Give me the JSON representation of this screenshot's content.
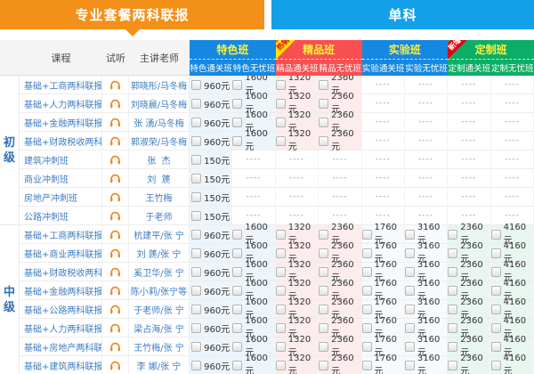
{
  "tabs": {
    "left": {
      "label": "专业套餐两科联报",
      "active": true
    },
    "right": {
      "label": "单科",
      "active": false
    }
  },
  "colors": {
    "tab_orange": "#f39019",
    "tab_blue": "#14a0e9",
    "link_blue": "#3e7cc0",
    "section_label_blue": "#2e6fb7"
  },
  "table": {
    "columns": {
      "course": "课程",
      "trial": "试听",
      "teacher": "主讲老师"
    },
    "groups": [
      {
        "title": "特色班",
        "subs": [
          "特色通关班",
          "特色无忧班"
        ],
        "bg": "#1588e1",
        "cell_bg": "#edf5fb",
        "ribbon": null
      },
      {
        "title": "精品班",
        "subs": [
          "精品通关班",
          "精品无忧班"
        ],
        "bg": "#fa4e51",
        "cell_bg": "#fdecec",
        "ribbon": {
          "label": "热销",
          "bg": "#ffe400",
          "color": "#e60012"
        }
      },
      {
        "title": "实验班",
        "subs": [
          "实验通关班",
          "实验无忧班"
        ],
        "bg": "#1588e1",
        "cell_bg": "#f7fafd",
        "ribbon": null
      },
      {
        "title": "定制班",
        "subs": [
          "定制通关班",
          "定制无忧班"
        ],
        "bg": "#0bae66",
        "cell_bg": "#e9f6ef",
        "ribbon": {
          "label": "新增",
          "bg": "#e60012",
          "color": "#ffffff"
        }
      }
    ],
    "currency_suffix": "元",
    "dash": "----",
    "sections": [
      {
        "label": "初级",
        "rows": [
          {
            "course": "基础+工商两科联报",
            "teacher": "郭晓彤/马冬梅",
            "prices": [
              960,
              1600,
              1320,
              2360,
              null,
              null,
              null,
              null
            ]
          },
          {
            "course": "基础+人力两科联报",
            "teacher": "刘晓晨/马冬梅",
            "prices": [
              960,
              1600,
              1320,
              2360,
              null,
              null,
              null,
              null
            ]
          },
          {
            "course": "基础+金融两科联报",
            "teacher": "张 湧/马冬梅",
            "prices": [
              960,
              1600,
              1320,
              2360,
              null,
              null,
              null,
              null
            ]
          },
          {
            "course": "基础+财政税收两科联报",
            "teacher": "郭淑荣/马冬梅",
            "prices": [
              960,
              1600,
              1320,
              2360,
              null,
              null,
              null,
              null
            ]
          },
          {
            "course": "建筑冲刺班",
            "teacher": "张  杰",
            "prices": [
              150,
              null,
              null,
              null,
              null,
              null,
              null,
              null
            ]
          },
          {
            "course": "商业冲刺班",
            "teacher": "刘  篪",
            "prices": [
              150,
              null,
              null,
              null,
              null,
              null,
              null,
              null
            ]
          },
          {
            "course": "房地产冲刺班",
            "teacher": "王竹梅",
            "prices": [
              150,
              null,
              null,
              null,
              null,
              null,
              null,
              null
            ]
          },
          {
            "course": "公路冲刺班",
            "teacher": "于老师",
            "prices": [
              150,
              null,
              null,
              null,
              null,
              null,
              null,
              null
            ]
          }
        ]
      },
      {
        "label": "中级",
        "rows": [
          {
            "course": "基础+工商两科联报",
            "teacher": "杭建平/张 宁",
            "prices": [
              960,
              1600,
              1320,
              2360,
              1760,
              3160,
              2360,
              4160
            ]
          },
          {
            "course": "基础+商业两科联报",
            "teacher": "刘 篪/张 宁",
            "prices": [
              960,
              1600,
              1320,
              2360,
              1760,
              3160,
              2360,
              4160
            ]
          },
          {
            "course": "基础+财政税收两科联报",
            "teacher": "奚卫华/张 宁",
            "prices": [
              960,
              1600,
              1320,
              2360,
              1760,
              3160,
              2360,
              4160
            ]
          },
          {
            "course": "基础+金融两科联报",
            "teacher": "陈小莉/张宁等",
            "prices": [
              960,
              1600,
              1320,
              2360,
              1760,
              3160,
              2360,
              4160
            ]
          },
          {
            "course": "基础+公路两科联报",
            "teacher": "于老师/张 宁",
            "prices": [
              960,
              1600,
              1320,
              2360,
              1760,
              3160,
              2360,
              4160
            ]
          },
          {
            "course": "基础+人力两科联报",
            "teacher": "梁占海/张 宁",
            "prices": [
              960,
              1600,
              1320,
              2360,
              1760,
              3160,
              2360,
              4160
            ]
          },
          {
            "course": "基础+房地产两科联报",
            "teacher": "王竹梅/张 宁",
            "prices": [
              960,
              1600,
              1320,
              2360,
              1760,
              3160,
              2360,
              4160
            ]
          },
          {
            "course": "基础+建筑两科联报",
            "teacher": "李 娜/张 宁",
            "prices": [
              960,
              1600,
              1320,
              2360,
              1760,
              3160,
              2360,
              4160
            ]
          }
        ]
      }
    ]
  }
}
